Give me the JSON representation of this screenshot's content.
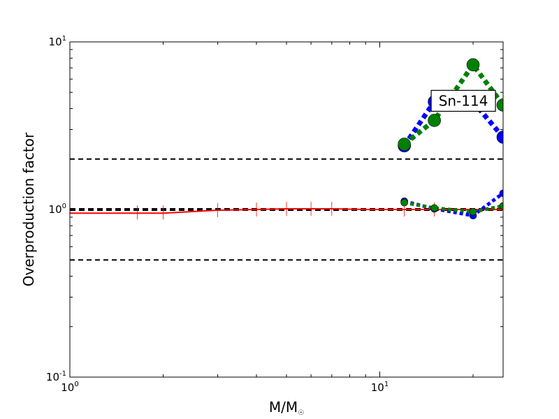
{
  "chart_data": {
    "type": "line",
    "xscale": "log",
    "yscale": "log",
    "xlim": [
      1,
      25
    ],
    "ylim": [
      0.1,
      10
    ],
    "xlabel": "M/M",
    "xlabel_sub": "☉",
    "ylabel": "Overproduction factor",
    "x_tick_labels": [
      {
        "value": 1,
        "base": "10",
        "exp": "0"
      },
      {
        "value": 10,
        "base": "10",
        "exp": "1"
      }
    ],
    "y_tick_labels": [
      {
        "value": 0.1,
        "base": "10",
        "exp": "-1"
      },
      {
        "value": 1,
        "base": "10",
        "exp": "0"
      },
      {
        "value": 10,
        "base": "10",
        "exp": "1"
      }
    ],
    "reference_lines": [
      {
        "y": 2.0,
        "style": "dashed",
        "color": "#000000",
        "width": 2
      },
      {
        "y": 1.0,
        "style": "dashed",
        "color": "#000000",
        "width": 4
      },
      {
        "y": 0.5,
        "style": "dashed",
        "color": "#000000",
        "width": 2
      }
    ],
    "series": [
      {
        "color": "#ff0000",
        "style": "solid",
        "width": 2,
        "marker": "none",
        "x": [
          1,
          2,
          3,
          4,
          5,
          6,
          7,
          9,
          12,
          15,
          20,
          25
        ],
        "y": [
          0.95,
          0.95,
          0.99,
          1.0,
          1.01,
          1.01,
          1.01,
          1.0,
          1.0,
          1.0,
          1.0,
          1.0
        ],
        "error_x": [
          1.65,
          2,
          3,
          4,
          5,
          6,
          7,
          12,
          15
        ],
        "error_y": [
          0.96,
          0.96,
          0.99,
          1.0,
          1.01,
          1.01,
          1.01,
          1.0,
          1.0
        ]
      },
      {
        "color": "#0000ff",
        "style": "dotted",
        "width": 7,
        "marker": "circle",
        "marker_size": 9,
        "x": [
          12,
          15,
          20,
          25
        ],
        "y": [
          2.4,
          4.4,
          4.4,
          2.7
        ]
      },
      {
        "color": "#008000",
        "style": "dotted",
        "width": 7,
        "marker": "circle",
        "marker_size": 9,
        "x": [
          12,
          15,
          20,
          25
        ],
        "y": [
          2.45,
          3.4,
          7.3,
          4.2
        ]
      },
      {
        "color": "#0000ff",
        "style": "dotted",
        "width": 5,
        "marker": "circle",
        "marker_size": 5,
        "x": [
          12,
          15,
          20,
          25
        ],
        "y": [
          1.12,
          1.01,
          0.92,
          1.25
        ]
      },
      {
        "color": "#008000",
        "style": "dotted",
        "width": 5,
        "marker": "circle",
        "marker_size": 5,
        "x": [
          12,
          15,
          20,
          25
        ],
        "y": [
          1.1,
          1.02,
          0.97,
          1.05
        ]
      }
    ],
    "annotation": {
      "text": "Sn-114",
      "x": 19.8,
      "y": 4.45
    }
  }
}
